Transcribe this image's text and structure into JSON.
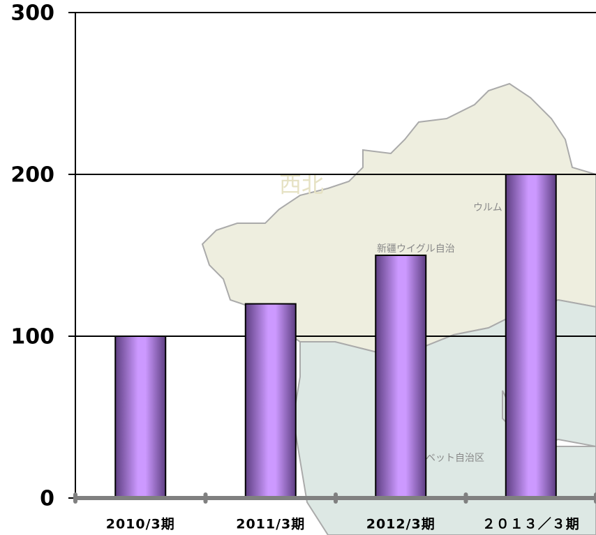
{
  "chart_data": {
    "type": "bar",
    "categories": [
      "2010/3期",
      "2011/3期",
      "2012/3期",
      "２０１３／３期"
    ],
    "values": [
      100,
      120,
      150,
      200
    ],
    "color": "#cc99ff",
    "ylim": [
      0,
      300
    ],
    "yticks": [
      0,
      100,
      200,
      300
    ],
    "grid": true,
    "annotations": [
      "西北",
      "ウルム",
      "新疆ウイグル自治",
      "ベット自治区"
    ]
  }
}
